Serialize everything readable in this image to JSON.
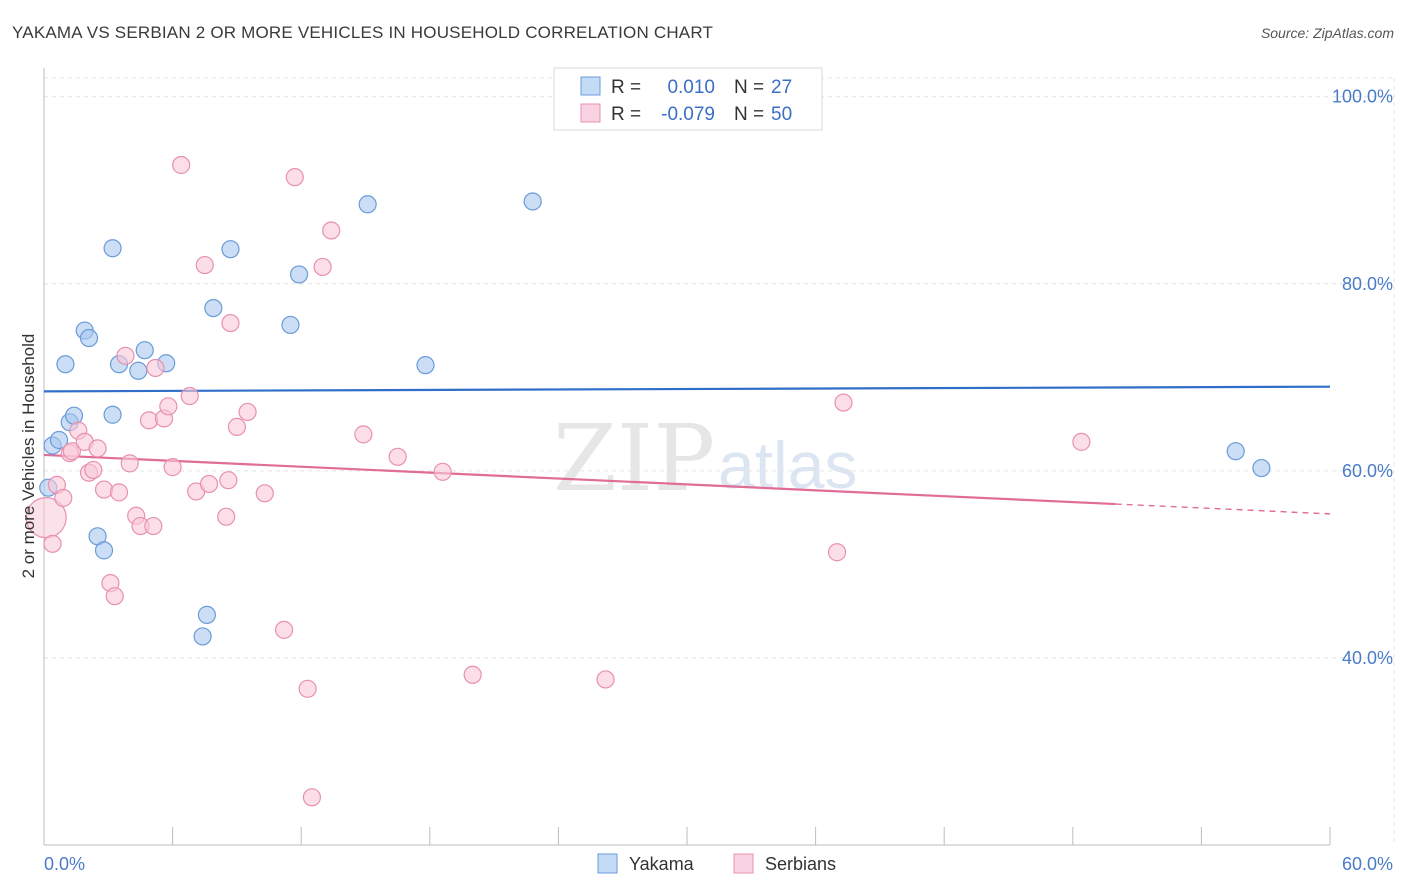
{
  "chart_data": {
    "type": "scatter",
    "title": "YAKAMA VS SERBIAN 2 OR MORE VEHICLES IN HOUSEHOLD CORRELATION CHART",
    "source": "Source: ZipAtlas.com",
    "xlabel": "",
    "ylabel": "2 or more Vehicles in Household",
    "xlim": [
      0,
      60
    ],
    "ylim": [
      20,
      102
    ],
    "x_tick_labels": [
      {
        "value": 0,
        "label": "0.0%"
      },
      {
        "value": 60,
        "label": "60.0%"
      }
    ],
    "y_tick_labels": [
      {
        "value": 100,
        "label": "100.0%"
      },
      {
        "value": 80,
        "label": "80.0%"
      },
      {
        "value": 60,
        "label": "60.0%"
      },
      {
        "value": 40,
        "label": "40.0%"
      }
    ],
    "x_minor_ticks": [
      0,
      6,
      12,
      18,
      24,
      30,
      36,
      42,
      48,
      54,
      60
    ],
    "grid": true,
    "watermark": {
      "zip": "ZIP",
      "atlas": "atlas"
    },
    "legend": {
      "r_label": "R =",
      "n_label": "N =",
      "entries": [
        {
          "name": "Yakama",
          "r": "0.010",
          "n": "27"
        },
        {
          "name": "Serbians",
          "r": "-0.079",
          "n": "50"
        }
      ]
    },
    "series": [
      {
        "name": "Yakama",
        "color": "#a8c8f0",
        "stroke": "#6b9bd8",
        "line_color": "#2f6fc9",
        "trend": {
          "x0": 0,
          "y0": 68.5,
          "x1": 60,
          "y1": 69.0,
          "dashed_from": null
        },
        "points": [
          {
            "x": 0.2,
            "y": 58.2
          },
          {
            "x": 0.4,
            "y": 62.7
          },
          {
            "x": 0.7,
            "y": 63.3
          },
          {
            "x": 1.0,
            "y": 71.4
          },
          {
            "x": 1.2,
            "y": 65.2
          },
          {
            "x": 1.4,
            "y": 65.9
          },
          {
            "x": 1.9,
            "y": 75.0
          },
          {
            "x": 2.1,
            "y": 74.2
          },
          {
            "x": 2.5,
            "y": 53.0
          },
          {
            "x": 2.8,
            "y": 51.5
          },
          {
            "x": 3.2,
            "y": 83.8
          },
          {
            "x": 3.2,
            "y": 66.0
          },
          {
            "x": 3.5,
            "y": 71.4
          },
          {
            "x": 4.4,
            "y": 70.7
          },
          {
            "x": 4.7,
            "y": 72.9
          },
          {
            "x": 5.7,
            "y": 71.5
          },
          {
            "x": 7.4,
            "y": 42.3
          },
          {
            "x": 7.6,
            "y": 44.6
          },
          {
            "x": 7.9,
            "y": 77.4
          },
          {
            "x": 8.7,
            "y": 83.7
          },
          {
            "x": 11.5,
            "y": 75.6
          },
          {
            "x": 11.9,
            "y": 81.0
          },
          {
            "x": 15.1,
            "y": 88.5
          },
          {
            "x": 17.8,
            "y": 71.3
          },
          {
            "x": 22.8,
            "y": 88.8
          },
          {
            "x": 55.6,
            "y": 62.1
          },
          {
            "x": 56.8,
            "y": 60.3
          }
        ]
      },
      {
        "name": "Serbians",
        "color": "#f8c8d8",
        "stroke": "#e890b0",
        "line_color": "#e06c98",
        "trend": {
          "x0": 0,
          "y0": 61.7,
          "x1": 60,
          "y1": 55.4,
          "dashed_from": 50
        },
        "points": [
          {
            "x": 0.1,
            "y": 55.0,
            "big": true
          },
          {
            "x": 0.4,
            "y": 52.2
          },
          {
            "x": 0.6,
            "y": 58.5
          },
          {
            "x": 0.9,
            "y": 57.1
          },
          {
            "x": 1.2,
            "y": 61.9
          },
          {
            "x": 1.3,
            "y": 62.1
          },
          {
            "x": 1.6,
            "y": 64.3
          },
          {
            "x": 1.9,
            "y": 63.1
          },
          {
            "x": 2.1,
            "y": 59.8
          },
          {
            "x": 2.3,
            "y": 60.1
          },
          {
            "x": 2.5,
            "y": 62.4
          },
          {
            "x": 2.8,
            "y": 58.0
          },
          {
            "x": 3.1,
            "y": 48.0
          },
          {
            "x": 3.3,
            "y": 46.6
          },
          {
            "x": 3.5,
            "y": 57.7
          },
          {
            "x": 3.8,
            "y": 72.3
          },
          {
            "x": 4.0,
            "y": 60.8
          },
          {
            "x": 4.3,
            "y": 55.2
          },
          {
            "x": 4.5,
            "y": 54.1
          },
          {
            "x": 4.9,
            "y": 65.4
          },
          {
            "x": 5.1,
            "y": 54.1
          },
          {
            "x": 5.2,
            "y": 71.0
          },
          {
            "x": 5.6,
            "y": 65.6
          },
          {
            "x": 5.8,
            "y": 66.9
          },
          {
            "x": 6.0,
            "y": 60.4
          },
          {
            "x": 6.4,
            "y": 92.7
          },
          {
            "x": 6.8,
            "y": 68.0
          },
          {
            "x": 7.1,
            "y": 57.8
          },
          {
            "x": 7.5,
            "y": 82.0
          },
          {
            "x": 7.7,
            "y": 58.6
          },
          {
            "x": 8.5,
            "y": 55.1
          },
          {
            "x": 8.6,
            "y": 59.0
          },
          {
            "x": 8.7,
            "y": 75.8
          },
          {
            "x": 9.0,
            "y": 64.7
          },
          {
            "x": 9.5,
            "y": 66.3
          },
          {
            "x": 10.3,
            "y": 57.6
          },
          {
            "x": 11.2,
            "y": 43.0
          },
          {
            "x": 11.7,
            "y": 91.4
          },
          {
            "x": 12.3,
            "y": 36.7
          },
          {
            "x": 12.5,
            "y": 25.1
          },
          {
            "x": 13.0,
            "y": 81.8
          },
          {
            "x": 13.4,
            "y": 85.7
          },
          {
            "x": 14.9,
            "y": 63.9
          },
          {
            "x": 16.5,
            "y": 61.5
          },
          {
            "x": 18.6,
            "y": 59.9
          },
          {
            "x": 20.0,
            "y": 38.2
          },
          {
            "x": 26.2,
            "y": 37.7
          },
          {
            "x": 37.0,
            "y": 51.3
          },
          {
            "x": 37.3,
            "y": 67.3
          },
          {
            "x": 48.4,
            "y": 63.1
          }
        ]
      }
    ]
  }
}
